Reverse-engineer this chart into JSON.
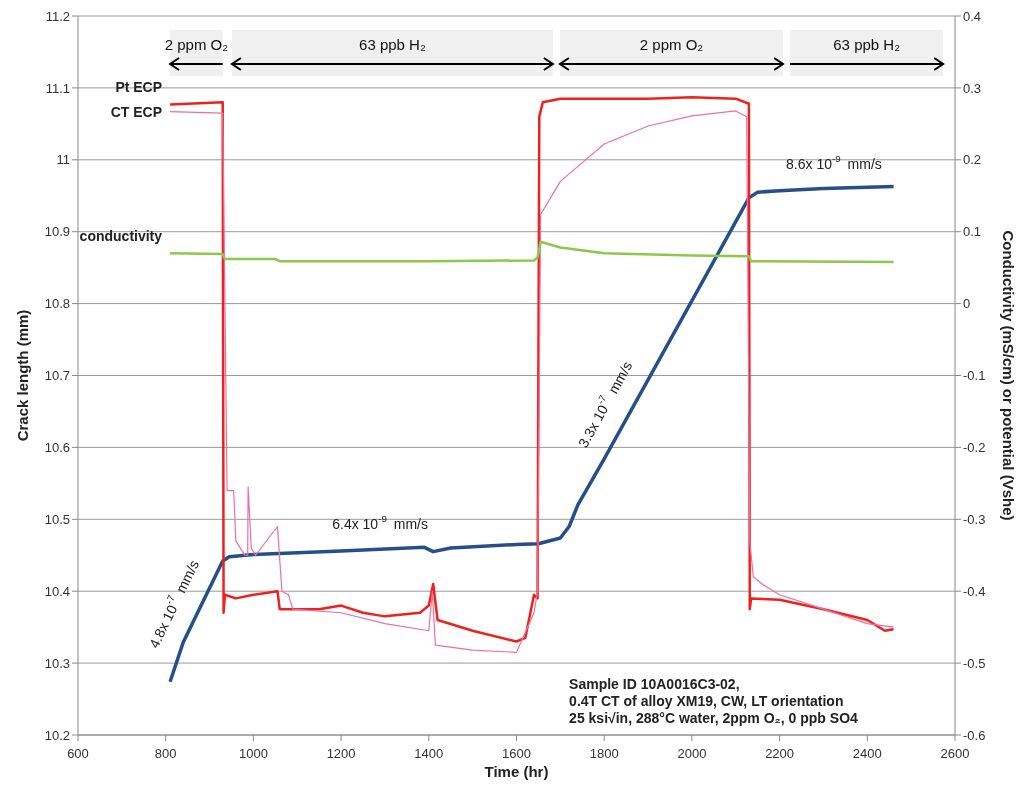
{
  "chart_data": {
    "type": "line",
    "xlabel": "Time (hr)",
    "ylabel": "Crack length (mm)",
    "y2label": "Conductivity (mS/cm) or potential (Vshe)",
    "xlim": [
      600,
      2600
    ],
    "xticks": [
      600,
      800,
      1000,
      1200,
      1400,
      1600,
      1800,
      2000,
      2200,
      2400,
      2600
    ],
    "ylim": [
      10.2,
      11.2
    ],
    "yticks": [
      10.2,
      10.3,
      10.4,
      10.5,
      10.6,
      10.7,
      10.8,
      10.9,
      11,
      11.1,
      11.2
    ],
    "y2lim": [
      -0.6,
      0.4
    ],
    "y2ticks": [
      -0.6,
      -0.5,
      -0.4,
      -0.3,
      -0.2,
      -0.1,
      0,
      0.1,
      0.2,
      0.3,
      0.4
    ],
    "grid": "y",
    "marker": "none",
    "line_style": "solid",
    "series": [
      {
        "color": "#264f8a",
        "x": [
          810,
          840,
          930,
          945,
          1000,
          1200,
          1390,
          1410,
          1450,
          1600,
          1650,
          1700,
          1720,
          1740,
          1800,
          2130,
          2150,
          2200,
          2300,
          2460
        ],
        "values": [
          10.274,
          10.329,
          10.442,
          10.448,
          10.451,
          10.456,
          10.461,
          10.455,
          10.46,
          10.465,
          10.466,
          10.474,
          10.49,
          10.52,
          10.584,
          10.947,
          10.955,
          10.957,
          10.96,
          10.963
        ]
      },
      {
        "name": "Pt ECP",
        "axis": "y2",
        "color": "#f0201e",
        "x": [
          810,
          930,
          932,
          935,
          960,
          1000,
          1055,
          1060,
          1150,
          1200,
          1250,
          1300,
          1380,
          1400,
          1410,
          1420,
          1500,
          1600,
          1620,
          1640,
          1648,
          1652,
          1660,
          1700,
          1800,
          1900,
          2000,
          2100,
          2130,
          2132,
          2135,
          2200,
          2300,
          2400,
          2440,
          2460
        ],
        "values": [
          0.277,
          0.28,
          -0.43,
          -0.405,
          -0.41,
          -0.405,
          -0.4,
          -0.425,
          -0.425,
          -0.42,
          -0.43,
          -0.435,
          -0.43,
          -0.42,
          -0.39,
          -0.44,
          -0.455,
          -0.47,
          -0.465,
          -0.405,
          -0.41,
          0.26,
          0.28,
          0.285,
          0.285,
          0.285,
          0.287,
          0.285,
          0.278,
          -0.425,
          -0.41,
          -0.412,
          -0.425,
          -0.44,
          -0.455,
          -0.453
        ]
      },
      {
        "name": "CT ECP",
        "axis": "y2",
        "color": "#ee6fa2",
        "x": [
          810,
          930,
          940,
          955,
          960,
          980,
          987,
          988,
          995,
          1005,
          1055,
          1065,
          1080,
          1090,
          1200,
          1300,
          1400,
          1408,
          1415,
          1500,
          1600,
          1640,
          1648,
          1655,
          1700,
          1800,
          1900,
          2000,
          2100,
          2125,
          2132,
          2140,
          2160,
          2200,
          2300,
          2400,
          2460
        ],
        "values": [
          0.267,
          0.265,
          -0.26,
          -0.26,
          -0.33,
          -0.35,
          -0.35,
          -0.255,
          -0.34,
          -0.35,
          -0.31,
          -0.4,
          -0.405,
          -0.425,
          -0.43,
          -0.445,
          -0.455,
          -0.4,
          -0.475,
          -0.482,
          -0.485,
          -0.43,
          -0.4,
          0.124,
          0.17,
          0.222,
          0.247,
          0.261,
          0.268,
          0.26,
          -0.33,
          -0.38,
          -0.39,
          -0.405,
          -0.425,
          -0.445,
          -0.45
        ]
      },
      {
        "name": "conductivity",
        "axis": "y2",
        "color": "#8cc84b",
        "x": [
          810,
          930,
          935,
          1050,
          1060,
          1400,
          1640,
          1648,
          1655,
          1700,
          1800,
          2000,
          2130,
          2135,
          2460
        ],
        "values": [
          0.07,
          0.069,
          0.062,
          0.062,
          0.059,
          0.059,
          0.06,
          0.064,
          0.086,
          0.078,
          0.07,
          0.067,
          0.066,
          0.059,
          0.058
        ]
      }
    ],
    "bands": [
      {
        "axis": "x",
        "from": 810,
        "to": 930,
        "label": "2 ppm O₂",
        "color": "#f0f0f0"
      },
      {
        "axis": "x",
        "from": 951,
        "to": 1683,
        "label": "63 ppb H₂",
        "color": "#f0f0f0"
      },
      {
        "axis": "x",
        "from": 1699,
        "to": 2208,
        "label": "2 ppm O₂",
        "color": "#f0f0f0"
      },
      {
        "axis": "x",
        "from": 2224,
        "to": 2573,
        "label": "63 ppb H₂",
        "color": "#f0f0f0"
      }
    ],
    "annotations": [
      {
        "text": "4.8x 10$^{-7}$ mm/s",
        "x": 870,
        "y": 10.367
      },
      {
        "text": "6.4x 10$^{-9}$ mm/s",
        "x": 1289,
        "y": 10.458
      },
      {
        "text": "3.3x 10$^{-7}$ mm/s",
        "x": 1852,
        "y": 10.643
      },
      {
        "text": "8.6x 10$^{-9}$ mm/s",
        "x": 2324,
        "y": 10.96
      },
      "Sample ID 10A0016C3-02,\n0.4T CT of alloy XM19, CW, LT orientation\n25 ksi√in, 288°C water, 2ppm O₂, 0 ppb SO4"
    ]
  }
}
